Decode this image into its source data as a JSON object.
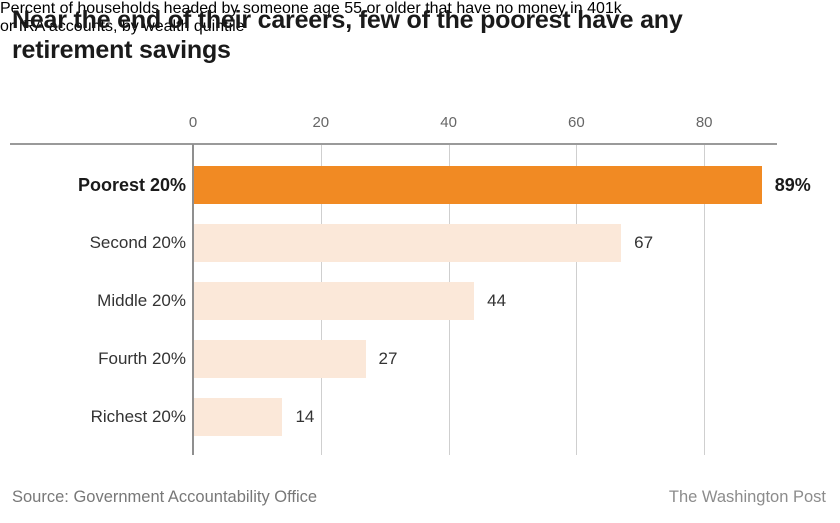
{
  "chart_data": {
    "type": "bar",
    "orientation": "horizontal",
    "title": "Near the end of their careers, few of the poorest have any retirement savings",
    "title_lines": [
      "Near the end of their careers, few of the poorest have any",
      "retirement savings"
    ],
    "subtitle": "Percent of households headed by someone age 55 or older that have no money in 401k or IRA accounts, by wealth quintile",
    "subtitle_lines": [
      "Percent of households headed by someone age 55 or older that have no money in 401k",
      "or IRA accounts, by wealth quintile"
    ],
    "categories": [
      "Poorest 20%",
      "Second 20%",
      "Middle 20%",
      "Fourth 20%",
      "Richest 20%"
    ],
    "values": [
      89,
      67,
      44,
      27,
      14
    ],
    "value_labels": [
      "89%",
      "67",
      "44",
      "27",
      "14"
    ],
    "highlighted_index": 0,
    "x_ticks": [
      0,
      20,
      40,
      60,
      80
    ],
    "xlim": [
      0,
      91
    ],
    "grid": "vertical",
    "legend": "none",
    "colors": {
      "highlight_bar": "#F18A23",
      "bar": "#FBE8D9",
      "gridline": "#cfcfcf",
      "axis_line": "#9a9a9a",
      "baseline": "#8f8f8f"
    },
    "source": "Source: Government Accountability Office",
    "credit": "The Washington Post"
  }
}
